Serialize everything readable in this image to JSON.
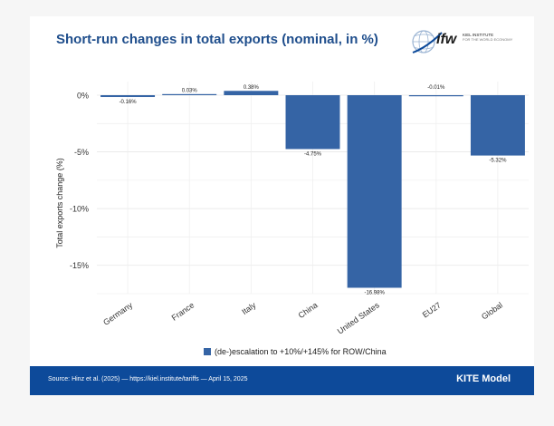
{
  "header": {
    "title": "Short-run changes in total exports (nominal, in %)",
    "logo_text": "ifw",
    "logo_sub1": "KIEL INSTITUTE",
    "logo_sub2": "FOR THE WORLD ECONOMY"
  },
  "footer": {
    "source": "Source: Hinz et al. (2025) — https://kiel.institute/tariffs — April 15, 2025",
    "model": "KITE Model"
  },
  "colors": {
    "bar": "#3564a5",
    "footer": "#0d4a9a",
    "title": "#1f4e8c"
  },
  "chart_data": {
    "type": "bar",
    "categories": [
      "Germany",
      "France",
      "Italy",
      "China",
      "United States",
      "EU27",
      "Global"
    ],
    "series": [
      {
        "name": "(de-)escalation to +10%/+145% for ROW/China",
        "values": [
          -0.16,
          0.03,
          0.38,
          -4.75,
          -16.98,
          -0.01,
          -5.32
        ]
      }
    ],
    "data_labels": [
      "-0.16%",
      "0.03%",
      "0.38%",
      "-4.75%",
      "-16.98%",
      "-0.01%",
      "-5.32%"
    ],
    "ylabel": "Total exports change (%)",
    "xlabel": "",
    "ylim": [
      -17.5,
      1.2
    ],
    "yticks": [
      0,
      -5,
      -10,
      -15
    ],
    "ytick_labels": [
      "0%",
      "-5%",
      "-10%",
      "-15%"
    ],
    "grid": true,
    "legend_position": "bottom"
  }
}
